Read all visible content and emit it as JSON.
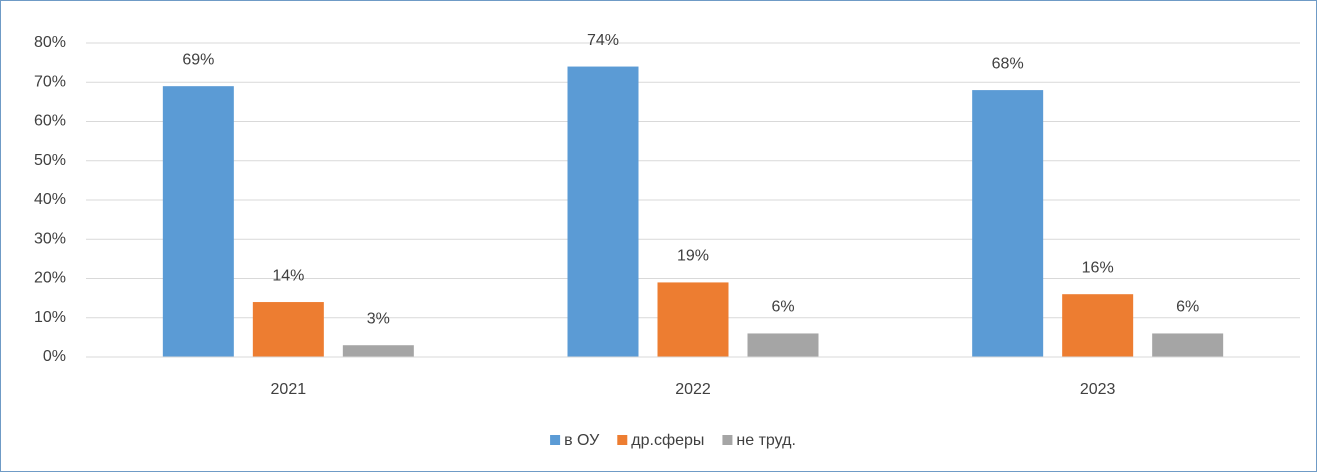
{
  "chart_data": {
    "type": "bar",
    "categories": [
      "2021",
      "2022",
      "2023"
    ],
    "series": [
      {
        "name": "в ОУ",
        "color": "#5b9bd5",
        "values": [
          69,
          74,
          68
        ],
        "value_labels": [
          "69%",
          "74%",
          "68%"
        ]
      },
      {
        "name": "др.сферы",
        "color": "#ed7d31",
        "values": [
          14,
          19,
          16
        ],
        "value_labels": [
          "14%",
          "19%",
          "16%"
        ]
      },
      {
        "name": "не труд.",
        "color": "#a5a5a5",
        "values": [
          3,
          6,
          6
        ],
        "value_labels": [
          "3%",
          "6%",
          "6%"
        ]
      }
    ],
    "ylim": [
      0,
      80
    ],
    "yticks": [
      {
        "value": 0,
        "label": "0%"
      },
      {
        "value": 10,
        "label": "10%"
      },
      {
        "value": 20,
        "label": "20%"
      },
      {
        "value": 30,
        "label": "30%"
      },
      {
        "value": 40,
        "label": "40%"
      },
      {
        "value": 50,
        "label": "50%"
      },
      {
        "value": 60,
        "label": "60%"
      },
      {
        "value": 70,
        "label": "70%"
      },
      {
        "value": 80,
        "label": "80%"
      }
    ],
    "grid": true,
    "legend": "bottom"
  }
}
